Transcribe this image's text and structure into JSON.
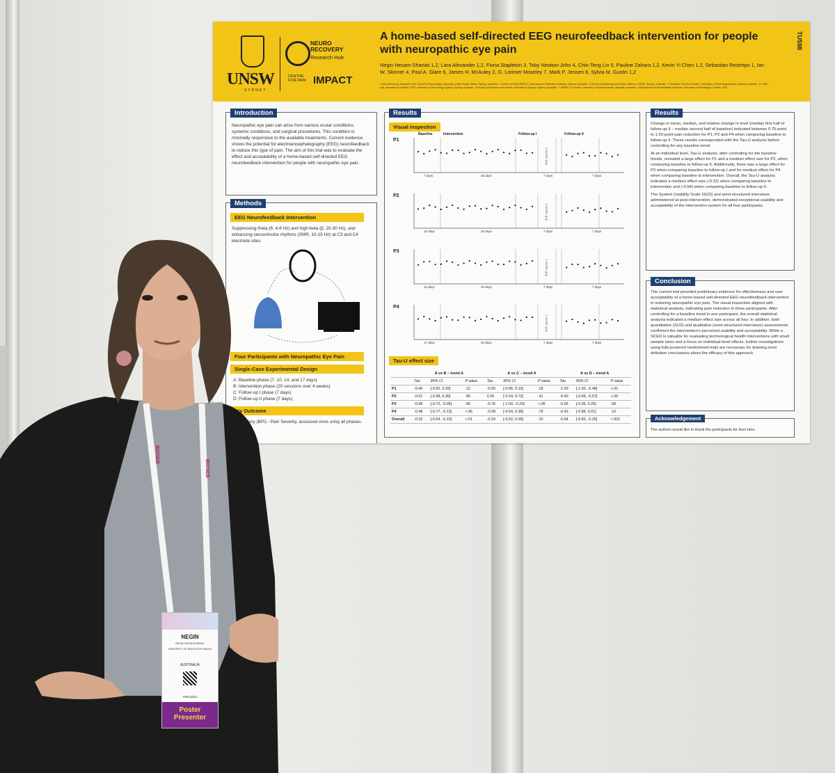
{
  "poster": {
    "code": "TU598",
    "title": "A home-based self-directed EEG neurofeedback intervention for people with neuropathic eye pain",
    "authors": "Negin Hesam-Shariati 1,2, Lara Alexander 1,2, Fiona Stapleton 3, Toby Newton-John 4, Chin-Teng Lin 5, Pauline Zahara 1,2, Kevin Yi Chen 1,2, Sebastian Restrepo 1, Ian W. Skinner 4, Paul A. Glare 6, James H. McAuley 2, G. Lorimer Moseley 7, Mark P. Jensen 8, Sylvia M. Gustin 1,2",
    "affiliations": "1 NeuroRecovery Research Hub, School of Psychology, University of New South Wales, Sydney, Australia · 2 Centre for Pain IMPACT, Neuroscience Research Australia, Sydney, Australia · 3 School of Optometry and Vision Science, UNSW, Sydney, Australia · 4 Graduate School of Health, University of Technology Sydney, Sydney, Australia · 5 CIBCI Lab, Australian AI Institute, FEIT, University of Technology Sydney, Sydney, Australia · 6 Faculty of Medicine and Health, University of Sydney, Sydney, Australia · 7 IIMPACT in Health, University of South Australia, Adelaide, Australia · 8 Department of Rehabilitation Medicine, University of Washington, Seattle, USA",
    "logos": {
      "unsw": "UNSW",
      "sydney": "SYDNEY",
      "neuro": "NEURO RECOVERY",
      "hub": "Research Hub",
      "centre": "CENTRE FOR PAIN",
      "impact": "IMPACT"
    },
    "intro": {
      "heading": "Introduction",
      "text": "Neuropathic eye pain can arise from various ocular conditions, systemic conditions, and surgical procedures. This condition is minimally responsive to the available treatments. Current evidence shows the potential for electroencephalography (EEG) neurofeedback to reduce this type of pain. The aim of this trial was to evaluate the effect and acceptability of a home-based self-directed EEG neurofeedback intervention for people with neuropathic eye pain."
    },
    "methods": {
      "heading": "Methods",
      "sub1": "EEG Neurofeedback Intervention",
      "text1": "Suppressing theta (θ, 4-8 Hz) and high-beta (β, 20-30 Hz), and enhancing sensorimotor rhythms (SMR, 10-15 Hz) at C3 and C4 electrode sites.",
      "diagram_labels": [
        "real-time EEG recording",
        "implementation via the gaming interface",
        "visual feedback"
      ],
      "sub2": "Four Participants with Neuropathic Eye Pain",
      "sub3": "Single-Case Experimental Design",
      "phases": [
        "A: Baseline phase (7, 10, 14, and 17 days)",
        "B: Intervention phase (20 sessions over 4 weeks)",
        "C: Follow-up I phase (7 days)",
        "D: Follow-up II phase (7 days)"
      ],
      "sub4": "ary Outcome",
      "outcome": "n Inventory (BPI) - Pain Severity, assessed once uring all phases."
    },
    "results": {
      "heading": "Results",
      "sub": "Visual inspection",
      "phase_labels": [
        "Baseline",
        "Intervention",
        "Follow-up I",
        "Follow-up II"
      ],
      "legend": [
        "Median",
        "Trend"
      ],
      "panels": [
        {
          "id": "P1",
          "ticks": [
            "7 days",
            "20 days",
            "7 days",
            "7 days"
          ],
          "gap": "4 weeks gap"
        },
        {
          "id": "P2",
          "ticks": [
            "10 days",
            "20 days",
            "7 days",
            "7 days"
          ],
          "gap": "4 weeks gap"
        },
        {
          "id": "P3",
          "ticks": [
            "14 days",
            "20 days",
            "7 days",
            "7 days"
          ],
          "gap": "4 weeks gap"
        },
        {
          "id": "P4",
          "ticks": [
            "17 days",
            "20 days",
            "7 days",
            "7 days"
          ],
          "gap": "4 weeks gap"
        }
      ],
      "ylabel": "Pain Severity (BPI)",
      "table_heading": "Tau-U effect size",
      "table_groups": [
        "A vs B – trend A",
        "A vs C – trend A",
        "A vs D – trend A"
      ],
      "table_cols": [
        "Tau",
        "95% CI",
        "P value",
        "Tau",
        "95% CI",
        "P value",
        "Tau",
        "95% CI",
        "P value"
      ],
      "table_rows": [
        [
          "P1",
          "-0.40",
          "[-0.82, 0.02]",
          ".12",
          "-0.50",
          "[-0.95, 0.10]",
          ".18",
          "-1.00",
          "[-1.00, -0.48]",
          "<.01"
        ],
        [
          "P2",
          "-0.01",
          "[-0.38, 0.36]",
          ".96",
          "0.26",
          "[-0.24, 0.72]",
          ".41",
          "-0.40",
          "[-0.66, -0.07]",
          "<.05"
        ],
        [
          "P3",
          "-0.45",
          "[-0.72, -0.05]",
          ".06",
          "-0.76",
          "[-1.00, -0.23]",
          "<.05",
          "-0.06",
          "[-0.36, 0.25]",
          ".68"
        ],
        [
          "P4",
          "-0.48",
          "[-0.77, -0.13]",
          "<.05",
          "-0.08",
          "[-0.54, 0.38]",
          ".78",
          "-0.43",
          "[-0.86, 0.01]",
          ".10"
        ],
        [
          "Overall",
          "-0.32",
          "[-0.54, -0.10]",
          "<.01",
          "-0.24",
          "[-0.52, 0.05]",
          ".10",
          "-0.54",
          "[-0.82, -0.25]",
          "<.001"
        ]
      ]
    },
    "results2": {
      "heading": "Results",
      "p1": "Change in mean, median, and relative change in level (median first half of follow-up II – median second half of baseline) indicated between 0.75-point to 1.50-point pain reduction for P1, P2 and P4 when comparing baseline to follow-up II. These results corresponded with the Tau-U analysis before controlling for any baseline trend.",
      "p2": "At an individual level, Tau-U analysis, after controlling for the baseline trends, revealed a large effect for P1 and a medium effect size for P2, when comparing baseline to follow-up II. Additionally, there was a large effect for P3 when comparing baseline to follow-up I and for medium effect for P4 when comparing baseline to intervention. Overall, the Tau-U analysis indicated a medium effect size (-0.32) when comparing baseline to intervention and (-0.54) when comparing baseline to follow-up II.",
      "p3": "The System Usability Scale (SUS) and semi-structured interviews administered at post-intervention, demonstrated exceptional usability and acceptability of the intervention system for all four participants."
    },
    "conclusion": {
      "heading": "Conclusion",
      "text": "The current trial provided preliminary evidence for effectiveness and user acceptability of a home-based self-directed EEG neurofeedback intervention in reducing neuropathic eye pain. The visual inspection aligned with statistical analysis, indicating pain reduction in three participants. After controlling for a baseline trend in one participant, the overall statistical analysis indicated a medium effect size across all four. In addition, both quantitative (SUS) and qualitative (semi-structured interviews) assessments confirmed the intervention's perceived usability and acceptability. While a SCED is valuable for evaluating technological health interventions with small sample sizes and a focus on individual-level effects, further investigations using fully-powered randomised trials are necessary for drawing more definitive conclusions about the efficacy of this approach."
    },
    "ack": {
      "heading": "Acknowledgement",
      "text": "The authors would like to thank the participants for their time."
    }
  },
  "badge": {
    "name": "NEGIN",
    "fullname": "NEGIN HESAM-SHARIATI",
    "org": "UNIVERSITY OF NEW SOUTH WALES",
    "country": "AUSTRALIA",
    "tag": "#WC2024",
    "role": "Poster Presenter",
    "lanyard": "BIOSEB"
  },
  "colors": {
    "banner": "#f2c418",
    "heading": "#1f3f70",
    "jacket": "#1a1a1a",
    "badge_role": "#7b2a8c"
  }
}
